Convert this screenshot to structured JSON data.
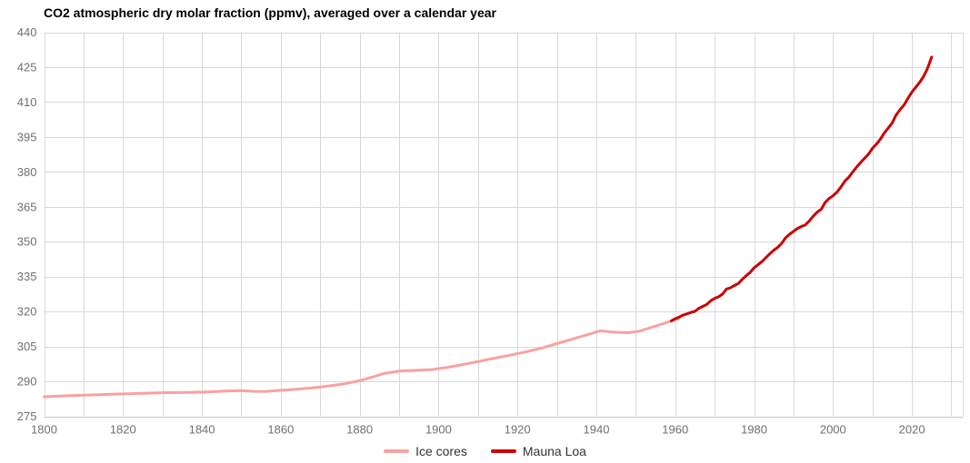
{
  "chart_data": {
    "type": "line",
    "title": "CO2 atmospheric dry molar fraction (ppmv), averaged over a calendar year",
    "xlabel": "",
    "ylabel": "",
    "grid": true,
    "x_axis": {
      "min": 1800,
      "max": 2033,
      "gridline_step": 10,
      "tick_labels": [
        1800,
        1820,
        1840,
        1860,
        1880,
        1900,
        1920,
        1940,
        1960,
        1980,
        2000,
        2020
      ]
    },
    "y_axis": {
      "min": 275,
      "max": 440,
      "gridline_step": 15,
      "tick_labels": [
        275,
        290,
        305,
        320,
        335,
        350,
        365,
        380,
        395,
        410,
        425,
        440
      ]
    },
    "legend": {
      "position": "bottom-center",
      "entries": [
        {
          "label": "Ice cores",
          "color": "#f9a1a1"
        },
        {
          "label": "Mauna Loa",
          "color": "#cc0000"
        }
      ]
    },
    "series": [
      {
        "name": "Ice cores",
        "color": "#f9a1a1",
        "points": [
          [
            1800,
            283.4
          ],
          [
            1803,
            283.6
          ],
          [
            1806,
            283.8
          ],
          [
            1810,
            284.1
          ],
          [
            1814,
            284.3
          ],
          [
            1818,
            284.5
          ],
          [
            1822,
            284.7
          ],
          [
            1826,
            284.9
          ],
          [
            1830,
            285.1
          ],
          [
            1834,
            285.2
          ],
          [
            1838,
            285.3
          ],
          [
            1842,
            285.5
          ],
          [
            1846,
            285.8
          ],
          [
            1850,
            286.0
          ],
          [
            1853,
            285.7
          ],
          [
            1856,
            285.6
          ],
          [
            1860,
            286.1
          ],
          [
            1864,
            286.6
          ],
          [
            1868,
            287.2
          ],
          [
            1872,
            288.0
          ],
          [
            1876,
            288.9
          ],
          [
            1880,
            290.3
          ],
          [
            1883,
            291.7
          ],
          [
            1886,
            293.3
          ],
          [
            1890,
            294.4
          ],
          [
            1894,
            294.7
          ],
          [
            1898,
            295.0
          ],
          [
            1902,
            295.9
          ],
          [
            1906,
            297.2
          ],
          [
            1910,
            298.5
          ],
          [
            1914,
            299.9
          ],
          [
            1918,
            301.2
          ],
          [
            1922,
            302.6
          ],
          [
            1926,
            304.2
          ],
          [
            1930,
            306.2
          ],
          [
            1934,
            308.2
          ],
          [
            1938,
            310.2
          ],
          [
            1941,
            311.7
          ],
          [
            1944,
            311.2
          ],
          [
            1948,
            310.9
          ],
          [
            1951,
            311.6
          ],
          [
            1954,
            313.2
          ],
          [
            1957,
            314.8
          ],
          [
            1961,
            317.0
          ]
        ]
      },
      {
        "name": "Mauna Loa",
        "color": "#cc0000",
        "points": [
          [
            1959,
            315.98
          ],
          [
            1960,
            316.91
          ],
          [
            1961,
            317.64
          ],
          [
            1962,
            318.45
          ],
          [
            1963,
            318.99
          ],
          [
            1964,
            319.62
          ],
          [
            1965,
            320.04
          ],
          [
            1966,
            321.37
          ],
          [
            1967,
            322.18
          ],
          [
            1968,
            323.05
          ],
          [
            1969,
            324.62
          ],
          [
            1970,
            325.68
          ],
          [
            1971,
            326.32
          ],
          [
            1972,
            327.46
          ],
          [
            1973,
            329.68
          ],
          [
            1974,
            330.19
          ],
          [
            1975,
            331.12
          ],
          [
            1976,
            332.03
          ],
          [
            1977,
            333.84
          ],
          [
            1978,
            335.41
          ],
          [
            1979,
            336.84
          ],
          [
            1980,
            338.76
          ],
          [
            1981,
            340.12
          ],
          [
            1982,
            341.48
          ],
          [
            1983,
            343.15
          ],
          [
            1984,
            344.85
          ],
          [
            1985,
            346.35
          ],
          [
            1986,
            347.61
          ],
          [
            1987,
            349.31
          ],
          [
            1988,
            351.69
          ],
          [
            1989,
            353.2
          ],
          [
            1990,
            354.45
          ],
          [
            1991,
            355.7
          ],
          [
            1992,
            356.54
          ],
          [
            1993,
            357.21
          ],
          [
            1994,
            358.96
          ],
          [
            1995,
            360.97
          ],
          [
            1996,
            362.74
          ],
          [
            1997,
            363.88
          ],
          [
            1998,
            366.84
          ],
          [
            1999,
            368.54
          ],
          [
            2000,
            369.71
          ],
          [
            2001,
            371.32
          ],
          [
            2002,
            373.45
          ],
          [
            2003,
            375.98
          ],
          [
            2004,
            377.7
          ],
          [
            2005,
            379.98
          ],
          [
            2006,
            382.09
          ],
          [
            2007,
            384.02
          ],
          [
            2008,
            385.83
          ],
          [
            2009,
            387.64
          ],
          [
            2010,
            390.1
          ],
          [
            2011,
            391.85
          ],
          [
            2012,
            394.06
          ],
          [
            2013,
            396.74
          ],
          [
            2014,
            398.81
          ],
          [
            2015,
            401.01
          ],
          [
            2016,
            404.41
          ],
          [
            2017,
            406.76
          ],
          [
            2018,
            408.72
          ],
          [
            2019,
            411.66
          ],
          [
            2020,
            414.24
          ],
          [
            2021,
            416.45
          ],
          [
            2022,
            418.56
          ],
          [
            2023,
            421.08
          ],
          [
            2024,
            424.61
          ],
          [
            2025,
            429.3
          ]
        ]
      }
    ],
    "style": {
      "gridline_color": "#d9d9d9",
      "axis_line_color": "#c8c8c8",
      "tick_label_color": "#707070",
      "line_width": 3
    }
  }
}
